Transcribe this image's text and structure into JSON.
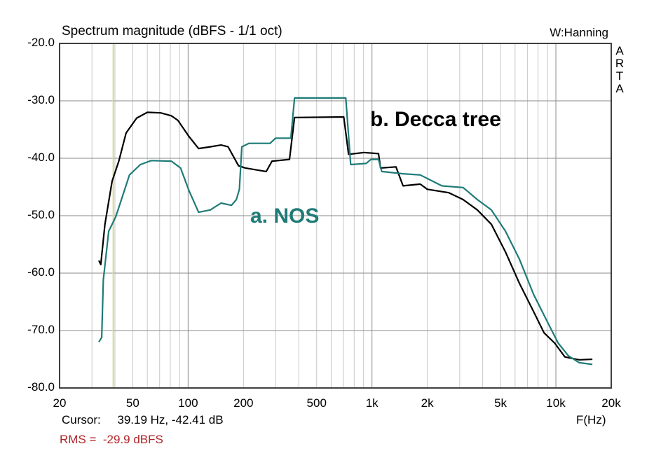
{
  "header": {
    "title": "Spectrum magnitude (dBFS - 1/1 oct)",
    "window": "W:Hanning",
    "brand": [
      "A",
      "R",
      "T",
      "A"
    ]
  },
  "footer": {
    "cursor_label": "Cursor:",
    "cursor_value": "39.19 Hz, -42.41 dB",
    "rms": "RMS =  -29.9 dBFS",
    "x_unit": "F(Hz)"
  },
  "colors": {
    "decca": "#000000",
    "nos": "#1e7b78",
    "cursor": "#d8d890",
    "grid": "#c8c8c8",
    "grid_major": "#8a8a8a",
    "rms": "#b0242a"
  },
  "chart_data": {
    "type": "line",
    "title": "Spectrum magnitude (dBFS - 1/1 oct)",
    "xlabel": "F(Hz)",
    "ylabel": "dBFS",
    "xscale": "log",
    "xlim": [
      20,
      20000
    ],
    "ylim": [
      -80,
      -20
    ],
    "grid": true,
    "x_ticks": [
      20,
      50,
      100,
      200,
      500,
      1000,
      2000,
      5000,
      10000,
      20000
    ],
    "x_tick_labels": [
      "20",
      "50",
      "100",
      "200",
      "500",
      "1k",
      "2k",
      "5k",
      "10k",
      "20k"
    ],
    "y_ticks": [
      -20,
      -30,
      -40,
      -50,
      -60,
      -70,
      -80
    ],
    "y_tick_labels": [
      "-20.0",
      "-30.0",
      "-40.0",
      "-50.0",
      "-60.0",
      "-70.0",
      "-80.0"
    ],
    "cursor": {
      "freq_hz": 39.19,
      "db": -42.41
    },
    "annotations": [
      {
        "text": "b. Decca tree",
        "series": "Decca tree"
      },
      {
        "text": "a. NOS",
        "series": "NOS"
      }
    ],
    "series": [
      {
        "name": "Decca tree",
        "label": "b. Decca tree",
        "color": "#000000",
        "points": [
          [
            32.7,
            -57.8
          ],
          [
            33.5,
            -58.5
          ],
          [
            35.3,
            -51.5
          ],
          [
            38.6,
            -44.0
          ],
          [
            42,
            -40.5
          ],
          [
            46,
            -35.6
          ],
          [
            52.5,
            -33.0
          ],
          [
            60,
            -32.0
          ],
          [
            71,
            -32.1
          ],
          [
            81,
            -32.6
          ],
          [
            88,
            -33.4
          ],
          [
            101,
            -36.2
          ],
          [
            114,
            -38.3
          ],
          [
            132,
            -38.0
          ],
          [
            151,
            -37.7
          ],
          [
            165,
            -38.0
          ],
          [
            188,
            -41.3
          ],
          [
            205,
            -41.7
          ],
          [
            266,
            -42.3
          ],
          [
            286,
            -40.5
          ],
          [
            356,
            -40.2
          ],
          [
            379,
            -32.9
          ],
          [
            702,
            -32.8
          ],
          [
            746,
            -39.3
          ],
          [
            905,
            -39.0
          ],
          [
            1085,
            -39.2
          ],
          [
            1113,
            -41.7
          ],
          [
            1350,
            -41.5
          ],
          [
            1475,
            -44.8
          ],
          [
            1830,
            -44.5
          ],
          [
            2000,
            -45.4
          ],
          [
            2620,
            -46.0
          ],
          [
            3130,
            -47.2
          ],
          [
            3740,
            -49.0
          ],
          [
            4460,
            -51.5
          ],
          [
            5320,
            -56.3
          ],
          [
            6340,
            -61.8
          ],
          [
            7560,
            -66.7
          ],
          [
            8630,
            -70.4
          ],
          [
            9860,
            -72.2
          ],
          [
            11200,
            -74.6
          ],
          [
            13400,
            -75.1
          ],
          [
            15800,
            -75.0
          ]
        ]
      },
      {
        "name": "NOS",
        "label": "a. NOS",
        "color": "#1e7b78",
        "points": [
          [
            32.7,
            -72.0
          ],
          [
            33.9,
            -71.2
          ],
          [
            34.6,
            -61.2
          ],
          [
            37,
            -52.7
          ],
          [
            40.4,
            -50.2
          ],
          [
            44,
            -46.6
          ],
          [
            48,
            -42.9
          ],
          [
            55,
            -41.1
          ],
          [
            63,
            -40.4
          ],
          [
            81,
            -40.5
          ],
          [
            91,
            -41.7
          ],
          [
            101,
            -45.6
          ],
          [
            114,
            -49.4
          ],
          [
            132,
            -49.0
          ],
          [
            151,
            -47.8
          ],
          [
            172,
            -48.2
          ],
          [
            183,
            -47.2
          ],
          [
            190,
            -45.4
          ],
          [
            196,
            -38.0
          ],
          [
            214,
            -37.4
          ],
          [
            279,
            -37.4
          ],
          [
            299,
            -36.5
          ],
          [
            362,
            -36.5
          ],
          [
            379,
            -29.5
          ],
          [
            720,
            -29.5
          ],
          [
            766,
            -41.1
          ],
          [
            930,
            -40.9
          ],
          [
            987,
            -40.2
          ],
          [
            1085,
            -40.2
          ],
          [
            1130,
            -42.3
          ],
          [
            1475,
            -42.7
          ],
          [
            1830,
            -42.9
          ],
          [
            2400,
            -44.8
          ],
          [
            3130,
            -45.1
          ],
          [
            3740,
            -47.2
          ],
          [
            4460,
            -49.0
          ],
          [
            5320,
            -52.7
          ],
          [
            6340,
            -57.6
          ],
          [
            7560,
            -63.7
          ],
          [
            9000,
            -68.5
          ],
          [
            10300,
            -72.2
          ],
          [
            11700,
            -74.4
          ],
          [
            13400,
            -75.6
          ],
          [
            15800,
            -75.9
          ]
        ]
      }
    ]
  }
}
